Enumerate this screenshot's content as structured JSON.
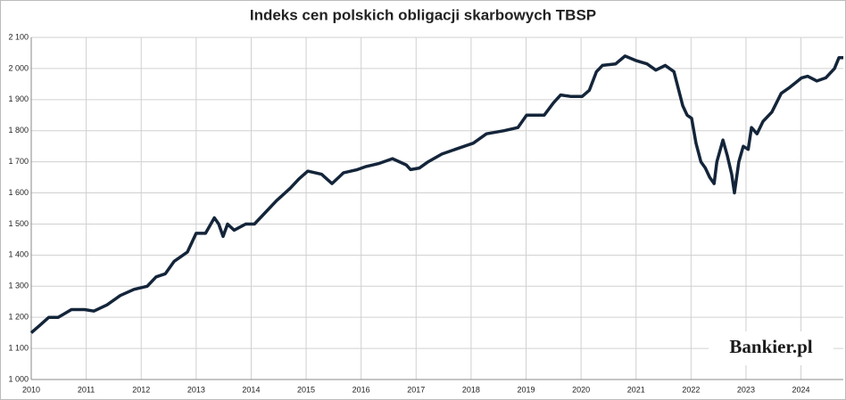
{
  "chart_data": {
    "type": "line",
    "title": "Indeks cen polskich obligacji skarbowych TBSP",
    "watermark": "Bankier.pl",
    "x": [
      2010.0,
      2010.16,
      2010.32,
      2010.49,
      2010.73,
      2010.97,
      2011.14,
      2011.38,
      2011.62,
      2011.87,
      2012.11,
      2012.27,
      2012.44,
      2012.6,
      2012.84,
      2013.0,
      2013.17,
      2013.33,
      2013.41,
      2013.49,
      2013.57,
      2013.69,
      2013.9,
      2014.06,
      2014.22,
      2014.46,
      2014.71,
      2014.87,
      2015.03,
      2015.28,
      2015.47,
      2015.68,
      2015.93,
      2016.09,
      2016.33,
      2016.57,
      2016.82,
      2016.9,
      2017.06,
      2017.22,
      2017.47,
      2017.71,
      2018.04,
      2018.28,
      2018.6,
      2018.85,
      2019.01,
      2019.33,
      2019.5,
      2019.63,
      2019.82,
      2020.02,
      2020.15,
      2020.28,
      2020.39,
      2020.63,
      2020.8,
      2021.01,
      2021.2,
      2021.36,
      2021.53,
      2021.69,
      2021.85,
      2021.93,
      2022.01,
      2022.09,
      2022.18,
      2022.26,
      2022.34,
      2022.42,
      2022.47,
      2022.58,
      2022.66,
      2022.74,
      2022.79,
      2022.87,
      2022.95,
      2023.04,
      2023.1,
      2023.2,
      2023.31,
      2023.47,
      2023.64,
      2023.8,
      2024.01,
      2024.12,
      2024.29,
      2024.45,
      2024.61,
      2024.69,
      2024.77
    ],
    "series": [
      {
        "name": "TBSP",
        "color": "#14253a",
        "values": [
          1150,
          1175,
          1200,
          1200,
          1225,
          1225,
          1220,
          1240,
          1270,
          1290,
          1300,
          1330,
          1340,
          1380,
          1410,
          1470,
          1470,
          1520,
          1500,
          1460,
          1500,
          1480,
          1500,
          1500,
          1530,
          1575,
          1615,
          1645,
          1670,
          1660,
          1630,
          1665,
          1675,
          1685,
          1695,
          1710,
          1690,
          1675,
          1680,
          1700,
          1725,
          1740,
          1760,
          1790,
          1800,
          1810,
          1850,
          1850,
          1890,
          1915,
          1910,
          1910,
          1930,
          1990,
          2010,
          2015,
          2040,
          2025,
          2015,
          1995,
          2010,
          1990,
          1880,
          1850,
          1840,
          1760,
          1700,
          1680,
          1650,
          1630,
          1700,
          1770,
          1720,
          1660,
          1600,
          1700,
          1750,
          1740,
          1810,
          1790,
          1830,
          1860,
          1920,
          1940,
          1970,
          1975,
          1960,
          1970,
          2000,
          2035,
          2035
        ]
      }
    ],
    "xlim": [
      2010,
      2024.77
    ],
    "xticks": [
      2010,
      2011,
      2012,
      2013,
      2014,
      2015,
      2016,
      2017,
      2018,
      2019,
      2020,
      2021,
      2022,
      2023,
      2024
    ],
    "ylim": [
      1000,
      2100
    ],
    "yticks": [
      {
        "value": 1000,
        "label": "1 000"
      },
      {
        "value": 1100,
        "label": "1 100"
      },
      {
        "value": 1200,
        "label": "1 200"
      },
      {
        "value": 1300,
        "label": "1 300"
      },
      {
        "value": 1400,
        "label": "1 400"
      },
      {
        "value": 1500,
        "label": "1 500"
      },
      {
        "value": 1600,
        "label": "1 600"
      },
      {
        "value": 1700,
        "label": "1 700"
      },
      {
        "value": 1800,
        "label": "1 800"
      },
      {
        "value": 1900,
        "label": "1 900"
      },
      {
        "value": 2000,
        "label": "2 000"
      },
      {
        "value": 2100,
        "label": "2 100"
      }
    ],
    "grid": true
  }
}
